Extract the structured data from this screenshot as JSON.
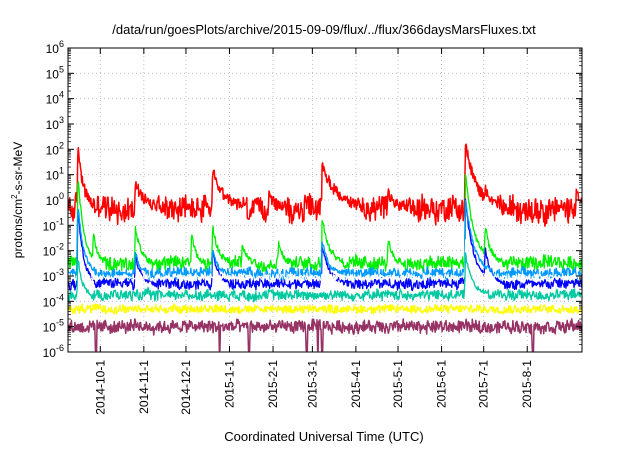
{
  "chart_data": {
    "type": "line",
    "title": "/data/run/goesPlots/archive/2015-09-09/flux/../flux/366daysMarsFluxes.txt",
    "xlabel": "Coordinated Universal Time (UTC)",
    "ylabel_parts": [
      "protons/cm",
      "2",
      "-s-sr-MeV"
    ],
    "yscale": "log",
    "ylim": [
      1e-06,
      1000000.0
    ],
    "ytick_exponents": [
      -6,
      -5,
      -4,
      -3,
      -2,
      -1,
      0,
      1,
      2,
      3,
      4,
      5,
      6
    ],
    "xlim": [
      "2014-09-08",
      "2015-09-09"
    ],
    "xtick_labels": [
      "2014-10-1",
      "2014-11-1",
      "2014-12-1",
      "2015-1-1",
      "2015-2-1",
      "2015-3-1",
      "2015-4-1",
      "2015-5-1",
      "2015-6-1",
      "2015-7-1",
      "2015-8-1"
    ],
    "xtick_dates": [
      "2014-10-01",
      "2014-11-01",
      "2014-12-01",
      "2015-01-01",
      "2015-02-01",
      "2015-03-01",
      "2015-04-01",
      "2015-05-01",
      "2015-06-01",
      "2015-07-01",
      "2015-08-01"
    ],
    "grid": true,
    "series": [
      {
        "color": "#ff0000",
        "baseline_log": -0.35,
        "noise": 0.45,
        "width": 1.5,
        "events": [
          [
            "2014-09-15",
            2.5,
            4
          ],
          [
            "2014-10-26",
            1.0,
            7
          ],
          [
            "2014-12-20",
            1.5,
            8
          ],
          [
            "2015-01-29",
            0.6,
            4
          ],
          [
            "2015-03-08",
            1.8,
            10
          ],
          [
            "2015-04-24",
            0.6,
            5
          ],
          [
            "2015-06-18",
            2.6,
            8
          ],
          [
            "2015-07-02",
            0.8,
            4
          ],
          [
            "2015-09-05",
            0.9,
            3
          ]
        ]
      },
      {
        "color": "#00ee00",
        "baseline_log": -2.5,
        "noise": 0.25,
        "width": 1.3,
        "events": [
          [
            "2014-09-15",
            3.6,
            4
          ],
          [
            "2014-09-26",
            1.2,
            3
          ],
          [
            "2014-10-26",
            1.4,
            4
          ],
          [
            "2014-12-05",
            1.2,
            3
          ],
          [
            "2014-12-20",
            1.5,
            4
          ],
          [
            "2015-01-10",
            0.8,
            3
          ],
          [
            "2015-02-05",
            0.9,
            3
          ],
          [
            "2015-03-08",
            1.8,
            5
          ],
          [
            "2015-04-24",
            1.0,
            3
          ],
          [
            "2015-06-18",
            3.6,
            6
          ],
          [
            "2015-07-02",
            1.5,
            4
          ]
        ]
      },
      {
        "color": "#0000ff",
        "baseline_log": -3.3,
        "noise": 0.2,
        "width": 1.3,
        "events": [
          [
            "2014-09-15",
            3.0,
            4
          ],
          [
            "2014-10-26",
            1.1,
            4
          ],
          [
            "2014-12-20",
            1.3,
            4
          ],
          [
            "2015-03-08",
            1.5,
            5
          ],
          [
            "2015-06-18",
            3.3,
            6
          ],
          [
            "2015-07-02",
            1.4,
            4
          ]
        ]
      },
      {
        "color": "#0099ff",
        "baseline_log": -2.9,
        "noise": 0.2,
        "width": 1.3,
        "events": [
          [
            "2014-09-15",
            2.8,
            4
          ],
          [
            "2014-10-26",
            0.9,
            3
          ],
          [
            "2014-12-20",
            1.1,
            3
          ],
          [
            "2015-03-08",
            1.3,
            4
          ],
          [
            "2015-06-18",
            3.0,
            6
          ]
        ]
      },
      {
        "color": "#ffffff",
        "baseline_log": -3.05,
        "noise": 0.12,
        "width": 1.0,
        "events": [
          [
            "2015-06-18",
            1.5,
            5
          ]
        ]
      },
      {
        "color": "#00c8a0",
        "baseline_log": -3.75,
        "noise": 0.18,
        "width": 1.3,
        "events": [
          [
            "2014-09-15",
            1.5,
            3
          ],
          [
            "2015-06-18",
            1.6,
            5
          ]
        ]
      },
      {
        "color": "#ffff00",
        "baseline_log": -4.3,
        "noise": 0.15,
        "width": 1.3,
        "events": []
      },
      {
        "color": "#963264",
        "baseline_log": -5.0,
        "noise": 0.22,
        "width": 1.5,
        "events": [],
        "dips": [
          "2014-09-28",
          "2014-12-25",
          "2015-01-15",
          "2015-02-25",
          "2015-03-05",
          "2015-03-08",
          "2015-08-05"
        ]
      }
    ]
  }
}
